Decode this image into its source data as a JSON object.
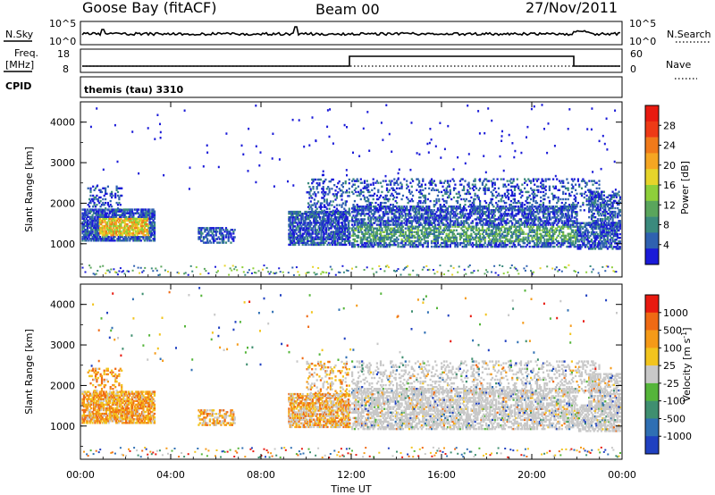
{
  "header": {
    "station": "Goose Bay (fitACF)",
    "beam": "Beam 00",
    "date": "27/Nov/2011"
  },
  "top_panels": {
    "nsky_label": "N.Sky",
    "nsky_ticks": [
      "10^5",
      "10^0"
    ],
    "nsearch_label": "N.Search",
    "nsearch_ticks": [
      "10^5",
      "10^0"
    ],
    "freq_label": "Freq.",
    "freq_unit": "[MHz]",
    "freq_ticks": [
      "18",
      "8"
    ],
    "nave_label": "Nave",
    "nave_ticks": [
      "60",
      "0"
    ],
    "cpid_label": "CPID",
    "cpid_value": "themis (tau) 3310"
  },
  "chart_data": [
    {
      "type": "heatmap",
      "quantity": "Power",
      "ylabel": "Slant Range [km]",
      "ylim": [
        180,
        4500
      ],
      "yticks": [
        1000,
        2000,
        3000,
        4000
      ],
      "ytick_labels": [
        "1000",
        "2000",
        "3000",
        "4000"
      ],
      "xlim_hours": [
        0,
        24
      ],
      "colorbar": {
        "label": "Power [dB]",
        "min": 0,
        "max": 32,
        "ticks": [
          "4",
          "8",
          "12",
          "16",
          "20",
          "24",
          "28"
        ],
        "colors": [
          "#1a1ad8",
          "#2f61b0",
          "#3b8a7d",
          "#5aa55c",
          "#8ecf3a",
          "#e6d42a",
          "#f5a623",
          "#f07a1a",
          "#ee3a16",
          "#e81a10"
        ]
      }
    },
    {
      "type": "heatmap",
      "quantity": "Velocity",
      "ylabel": "Slant Range [km]",
      "ylim": [
        180,
        4500
      ],
      "yticks": [
        1000,
        2000,
        3000,
        4000
      ],
      "ytick_labels": [
        "1000",
        "2000",
        "3000",
        "4000"
      ],
      "xlim_hours": [
        0,
        24
      ],
      "colorbar": {
        "label": "Velocity [m s^-1]",
        "ticks": [
          "1000",
          "500",
          "100",
          "25",
          "-25",
          "-100",
          "-500",
          "-1000"
        ],
        "colors": [
          "#2040c0",
          "#2f6fb3",
          "#3f8f70",
          "#55b53a",
          "#c8c8c8",
          "#f2c41e",
          "#f59a18",
          "#ef6a14",
          "#e81a10"
        ]
      }
    }
  ],
  "xaxis": {
    "label": "Time UT",
    "tick_labels": [
      "00:00",
      "04:00",
      "08:00",
      "12:00",
      "16:00",
      "20:00",
      "00:00"
    ],
    "tick_hours": [
      0,
      4,
      8,
      12,
      16,
      20,
      24
    ]
  }
}
